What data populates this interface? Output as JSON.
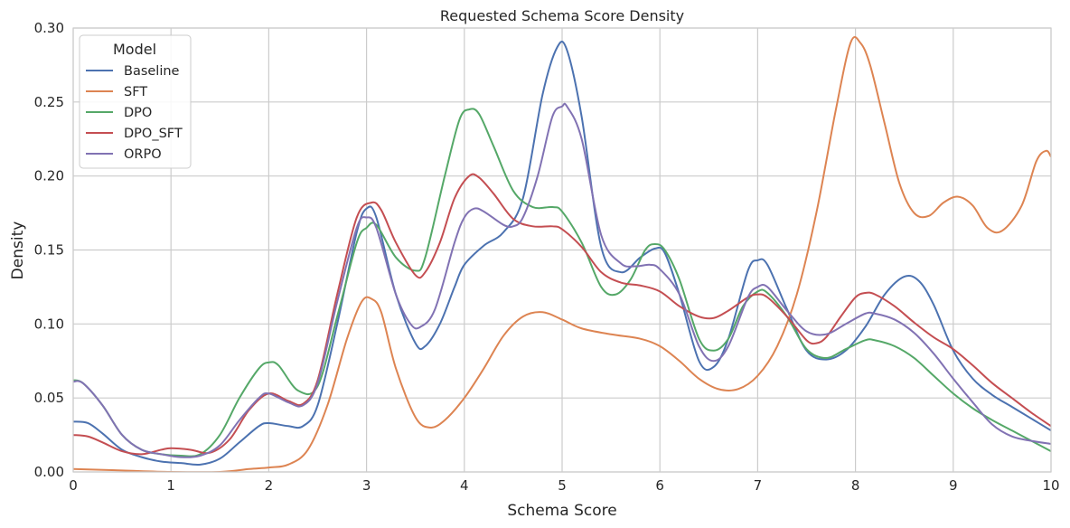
{
  "chart_data": {
    "type": "line",
    "title": "Requested Schema Score Density",
    "xlabel": "Schema Score",
    "ylabel": "Density",
    "xlim": [
      0,
      10
    ],
    "ylim": [
      0,
      0.3
    ],
    "xticks": [
      "0",
      "1",
      "2",
      "3",
      "4",
      "5",
      "6",
      "7",
      "8",
      "9",
      "10"
    ],
    "yticks": [
      "0.00",
      "0.05",
      "0.10",
      "0.15",
      "0.20",
      "0.25",
      "0.30"
    ],
    "grid": true,
    "legend": {
      "title": "Model",
      "position": "top-left"
    },
    "series": [
      {
        "name": "Baseline",
        "color": "#4c72b0",
        "points": [
          [
            0,
            0.034
          ],
          [
            0.15,
            0.033
          ],
          [
            0.3,
            0.026
          ],
          [
            0.5,
            0.015
          ],
          [
            0.7,
            0.01
          ],
          [
            0.9,
            0.007
          ],
          [
            1.1,
            0.006
          ],
          [
            1.3,
            0.005
          ],
          [
            1.5,
            0.009
          ],
          [
            1.7,
            0.02
          ],
          [
            1.9,
            0.031
          ],
          [
            2.0,
            0.033
          ],
          [
            2.2,
            0.031
          ],
          [
            2.35,
            0.031
          ],
          [
            2.5,
            0.045
          ],
          [
            2.7,
            0.1
          ],
          [
            2.9,
            0.162
          ],
          [
            3.0,
            0.178
          ],
          [
            3.1,
            0.172
          ],
          [
            3.3,
            0.12
          ],
          [
            3.5,
            0.087
          ],
          [
            3.6,
            0.085
          ],
          [
            3.75,
            0.1
          ],
          [
            3.9,
            0.125
          ],
          [
            4.0,
            0.14
          ],
          [
            4.2,
            0.153
          ],
          [
            4.4,
            0.162
          ],
          [
            4.6,
            0.185
          ],
          [
            4.8,
            0.255
          ],
          [
            4.95,
            0.287
          ],
          [
            5.05,
            0.285
          ],
          [
            5.2,
            0.24
          ],
          [
            5.4,
            0.152
          ],
          [
            5.6,
            0.135
          ],
          [
            5.8,
            0.145
          ],
          [
            5.95,
            0.151
          ],
          [
            6.05,
            0.148
          ],
          [
            6.2,
            0.12
          ],
          [
            6.4,
            0.075
          ],
          [
            6.55,
            0.071
          ],
          [
            6.7,
            0.09
          ],
          [
            6.9,
            0.136
          ],
          [
            7.0,
            0.143
          ],
          [
            7.1,
            0.14
          ],
          [
            7.3,
            0.11
          ],
          [
            7.5,
            0.082
          ],
          [
            7.7,
            0.076
          ],
          [
            7.9,
            0.082
          ],
          [
            8.1,
            0.098
          ],
          [
            8.3,
            0.12
          ],
          [
            8.5,
            0.132
          ],
          [
            8.65,
            0.129
          ],
          [
            8.8,
            0.113
          ],
          [
            9.0,
            0.082
          ],
          [
            9.2,
            0.063
          ],
          [
            9.4,
            0.052
          ],
          [
            9.6,
            0.044
          ],
          [
            9.8,
            0.036
          ],
          [
            10.0,
            0.028
          ]
        ]
      },
      {
        "name": "SFT",
        "color": "#dd8452",
        "points": [
          [
            0,
            0.002
          ],
          [
            0.5,
            0.001
          ],
          [
            1.0,
            0.0
          ],
          [
            1.5,
            0.0
          ],
          [
            1.8,
            0.002
          ],
          [
            2.0,
            0.003
          ],
          [
            2.2,
            0.005
          ],
          [
            2.4,
            0.015
          ],
          [
            2.6,
            0.045
          ],
          [
            2.8,
            0.09
          ],
          [
            2.95,
            0.115
          ],
          [
            3.05,
            0.117
          ],
          [
            3.15,
            0.108
          ],
          [
            3.3,
            0.07
          ],
          [
            3.5,
            0.037
          ],
          [
            3.65,
            0.03
          ],
          [
            3.8,
            0.035
          ],
          [
            4.0,
            0.05
          ],
          [
            4.2,
            0.07
          ],
          [
            4.4,
            0.092
          ],
          [
            4.6,
            0.105
          ],
          [
            4.8,
            0.108
          ],
          [
            5.0,
            0.103
          ],
          [
            5.2,
            0.097
          ],
          [
            5.5,
            0.093
          ],
          [
            5.8,
            0.09
          ],
          [
            6.0,
            0.085
          ],
          [
            6.2,
            0.075
          ],
          [
            6.4,
            0.063
          ],
          [
            6.6,
            0.056
          ],
          [
            6.8,
            0.056
          ],
          [
            7.0,
            0.065
          ],
          [
            7.2,
            0.085
          ],
          [
            7.4,
            0.12
          ],
          [
            7.6,
            0.175
          ],
          [
            7.8,
            0.245
          ],
          [
            7.95,
            0.29
          ],
          [
            8.05,
            0.29
          ],
          [
            8.15,
            0.275
          ],
          [
            8.3,
            0.235
          ],
          [
            8.45,
            0.195
          ],
          [
            8.6,
            0.175
          ],
          [
            8.75,
            0.173
          ],
          [
            8.9,
            0.182
          ],
          [
            9.05,
            0.186
          ],
          [
            9.2,
            0.18
          ],
          [
            9.35,
            0.165
          ],
          [
            9.5,
            0.163
          ],
          [
            9.7,
            0.18
          ],
          [
            9.85,
            0.21
          ],
          [
            9.95,
            0.217
          ],
          [
            10.0,
            0.213
          ]
        ]
      },
      {
        "name": "DPO",
        "color": "#55a868",
        "points": [
          [
            0,
            0.062
          ],
          [
            0.1,
            0.06
          ],
          [
            0.3,
            0.045
          ],
          [
            0.5,
            0.025
          ],
          [
            0.7,
            0.015
          ],
          [
            0.9,
            0.012
          ],
          [
            1.1,
            0.011
          ],
          [
            1.3,
            0.012
          ],
          [
            1.5,
            0.025
          ],
          [
            1.7,
            0.05
          ],
          [
            1.9,
            0.07
          ],
          [
            2.0,
            0.074
          ],
          [
            2.1,
            0.072
          ],
          [
            2.3,
            0.055
          ],
          [
            2.5,
            0.058
          ],
          [
            2.7,
            0.105
          ],
          [
            2.9,
            0.155
          ],
          [
            3.0,
            0.165
          ],
          [
            3.1,
            0.167
          ],
          [
            3.3,
            0.145
          ],
          [
            3.5,
            0.136
          ],
          [
            3.6,
            0.145
          ],
          [
            3.8,
            0.2
          ],
          [
            3.95,
            0.238
          ],
          [
            4.05,
            0.245
          ],
          [
            4.15,
            0.242
          ],
          [
            4.3,
            0.22
          ],
          [
            4.5,
            0.19
          ],
          [
            4.7,
            0.179
          ],
          [
            4.9,
            0.179
          ],
          [
            5.0,
            0.176
          ],
          [
            5.2,
            0.155
          ],
          [
            5.4,
            0.125
          ],
          [
            5.55,
            0.12
          ],
          [
            5.7,
            0.13
          ],
          [
            5.85,
            0.15
          ],
          [
            5.95,
            0.154
          ],
          [
            6.05,
            0.15
          ],
          [
            6.2,
            0.13
          ],
          [
            6.4,
            0.09
          ],
          [
            6.55,
            0.082
          ],
          [
            6.7,
            0.09
          ],
          [
            6.85,
            0.112
          ],
          [
            7.0,
            0.122
          ],
          [
            7.1,
            0.121
          ],
          [
            7.3,
            0.105
          ],
          [
            7.5,
            0.083
          ],
          [
            7.7,
            0.077
          ],
          [
            7.9,
            0.083
          ],
          [
            8.1,
            0.089
          ],
          [
            8.2,
            0.089
          ],
          [
            8.4,
            0.085
          ],
          [
            8.6,
            0.077
          ],
          [
            8.8,
            0.065
          ],
          [
            9.0,
            0.053
          ],
          [
            9.2,
            0.043
          ],
          [
            9.4,
            0.035
          ],
          [
            9.6,
            0.028
          ],
          [
            9.8,
            0.021
          ],
          [
            10.0,
            0.014
          ]
        ]
      },
      {
        "name": "DPO_SFT",
        "color": "#c44e52",
        "points": [
          [
            0,
            0.025
          ],
          [
            0.15,
            0.024
          ],
          [
            0.3,
            0.02
          ],
          [
            0.5,
            0.014
          ],
          [
            0.7,
            0.012
          ],
          [
            0.9,
            0.015
          ],
          [
            1.0,
            0.016
          ],
          [
            1.2,
            0.015
          ],
          [
            1.4,
            0.013
          ],
          [
            1.6,
            0.022
          ],
          [
            1.8,
            0.042
          ],
          [
            2.0,
            0.053
          ],
          [
            2.2,
            0.048
          ],
          [
            2.35,
            0.046
          ],
          [
            2.5,
            0.062
          ],
          [
            2.7,
            0.12
          ],
          [
            2.9,
            0.172
          ],
          [
            3.05,
            0.182
          ],
          [
            3.15,
            0.177
          ],
          [
            3.3,
            0.155
          ],
          [
            3.5,
            0.133
          ],
          [
            3.6,
            0.135
          ],
          [
            3.75,
            0.155
          ],
          [
            3.9,
            0.185
          ],
          [
            4.05,
            0.2
          ],
          [
            4.15,
            0.199
          ],
          [
            4.3,
            0.188
          ],
          [
            4.5,
            0.171
          ],
          [
            4.7,
            0.166
          ],
          [
            4.9,
            0.166
          ],
          [
            5.0,
            0.164
          ],
          [
            5.2,
            0.152
          ],
          [
            5.4,
            0.135
          ],
          [
            5.6,
            0.128
          ],
          [
            5.8,
            0.126
          ],
          [
            6.0,
            0.122
          ],
          [
            6.2,
            0.112
          ],
          [
            6.4,
            0.105
          ],
          [
            6.55,
            0.104
          ],
          [
            6.7,
            0.109
          ],
          [
            6.9,
            0.118
          ],
          [
            7.0,
            0.12
          ],
          [
            7.1,
            0.118
          ],
          [
            7.3,
            0.105
          ],
          [
            7.5,
            0.089
          ],
          [
            7.6,
            0.087
          ],
          [
            7.7,
            0.091
          ],
          [
            7.85,
            0.105
          ],
          [
            8.0,
            0.118
          ],
          [
            8.1,
            0.121
          ],
          [
            8.2,
            0.12
          ],
          [
            8.4,
            0.112
          ],
          [
            8.6,
            0.101
          ],
          [
            8.8,
            0.091
          ],
          [
            9.0,
            0.083
          ],
          [
            9.2,
            0.072
          ],
          [
            9.4,
            0.06
          ],
          [
            9.6,
            0.05
          ],
          [
            9.8,
            0.04
          ],
          [
            10.0,
            0.031
          ]
        ]
      },
      {
        "name": "ORPO",
        "color": "#8172b3",
        "points": [
          [
            0,
            0.061
          ],
          [
            0.1,
            0.06
          ],
          [
            0.3,
            0.045
          ],
          [
            0.5,
            0.025
          ],
          [
            0.7,
            0.015
          ],
          [
            0.9,
            0.012
          ],
          [
            1.1,
            0.01
          ],
          [
            1.3,
            0.011
          ],
          [
            1.5,
            0.018
          ],
          [
            1.7,
            0.035
          ],
          [
            1.9,
            0.05
          ],
          [
            2.0,
            0.053
          ],
          [
            2.2,
            0.047
          ],
          [
            2.35,
            0.045
          ],
          [
            2.5,
            0.06
          ],
          [
            2.7,
            0.115
          ],
          [
            2.9,
            0.165
          ],
          [
            3.0,
            0.172
          ],
          [
            3.1,
            0.165
          ],
          [
            3.3,
            0.12
          ],
          [
            3.45,
            0.1
          ],
          [
            3.55,
            0.098
          ],
          [
            3.7,
            0.11
          ],
          [
            3.9,
            0.155
          ],
          [
            4.0,
            0.172
          ],
          [
            4.1,
            0.178
          ],
          [
            4.2,
            0.176
          ],
          [
            4.4,
            0.167
          ],
          [
            4.5,
            0.166
          ],
          [
            4.6,
            0.172
          ],
          [
            4.75,
            0.2
          ],
          [
            4.9,
            0.24
          ],
          [
            5.0,
            0.247
          ],
          [
            5.05,
            0.247
          ],
          [
            5.2,
            0.225
          ],
          [
            5.4,
            0.16
          ],
          [
            5.6,
            0.141
          ],
          [
            5.75,
            0.139
          ],
          [
            5.9,
            0.14
          ],
          [
            6.0,
            0.137
          ],
          [
            6.2,
            0.12
          ],
          [
            6.4,
            0.085
          ],
          [
            6.55,
            0.075
          ],
          [
            6.7,
            0.085
          ],
          [
            6.9,
            0.118
          ],
          [
            7.0,
            0.125
          ],
          [
            7.1,
            0.125
          ],
          [
            7.3,
            0.109
          ],
          [
            7.5,
            0.095
          ],
          [
            7.7,
            0.093
          ],
          [
            7.9,
            0.1
          ],
          [
            8.1,
            0.107
          ],
          [
            8.2,
            0.107
          ],
          [
            8.4,
            0.103
          ],
          [
            8.6,
            0.094
          ],
          [
            8.8,
            0.08
          ],
          [
            9.0,
            0.063
          ],
          [
            9.2,
            0.047
          ],
          [
            9.4,
            0.032
          ],
          [
            9.6,
            0.024
          ],
          [
            9.8,
            0.021
          ],
          [
            10.0,
            0.019
          ]
        ]
      }
    ]
  }
}
